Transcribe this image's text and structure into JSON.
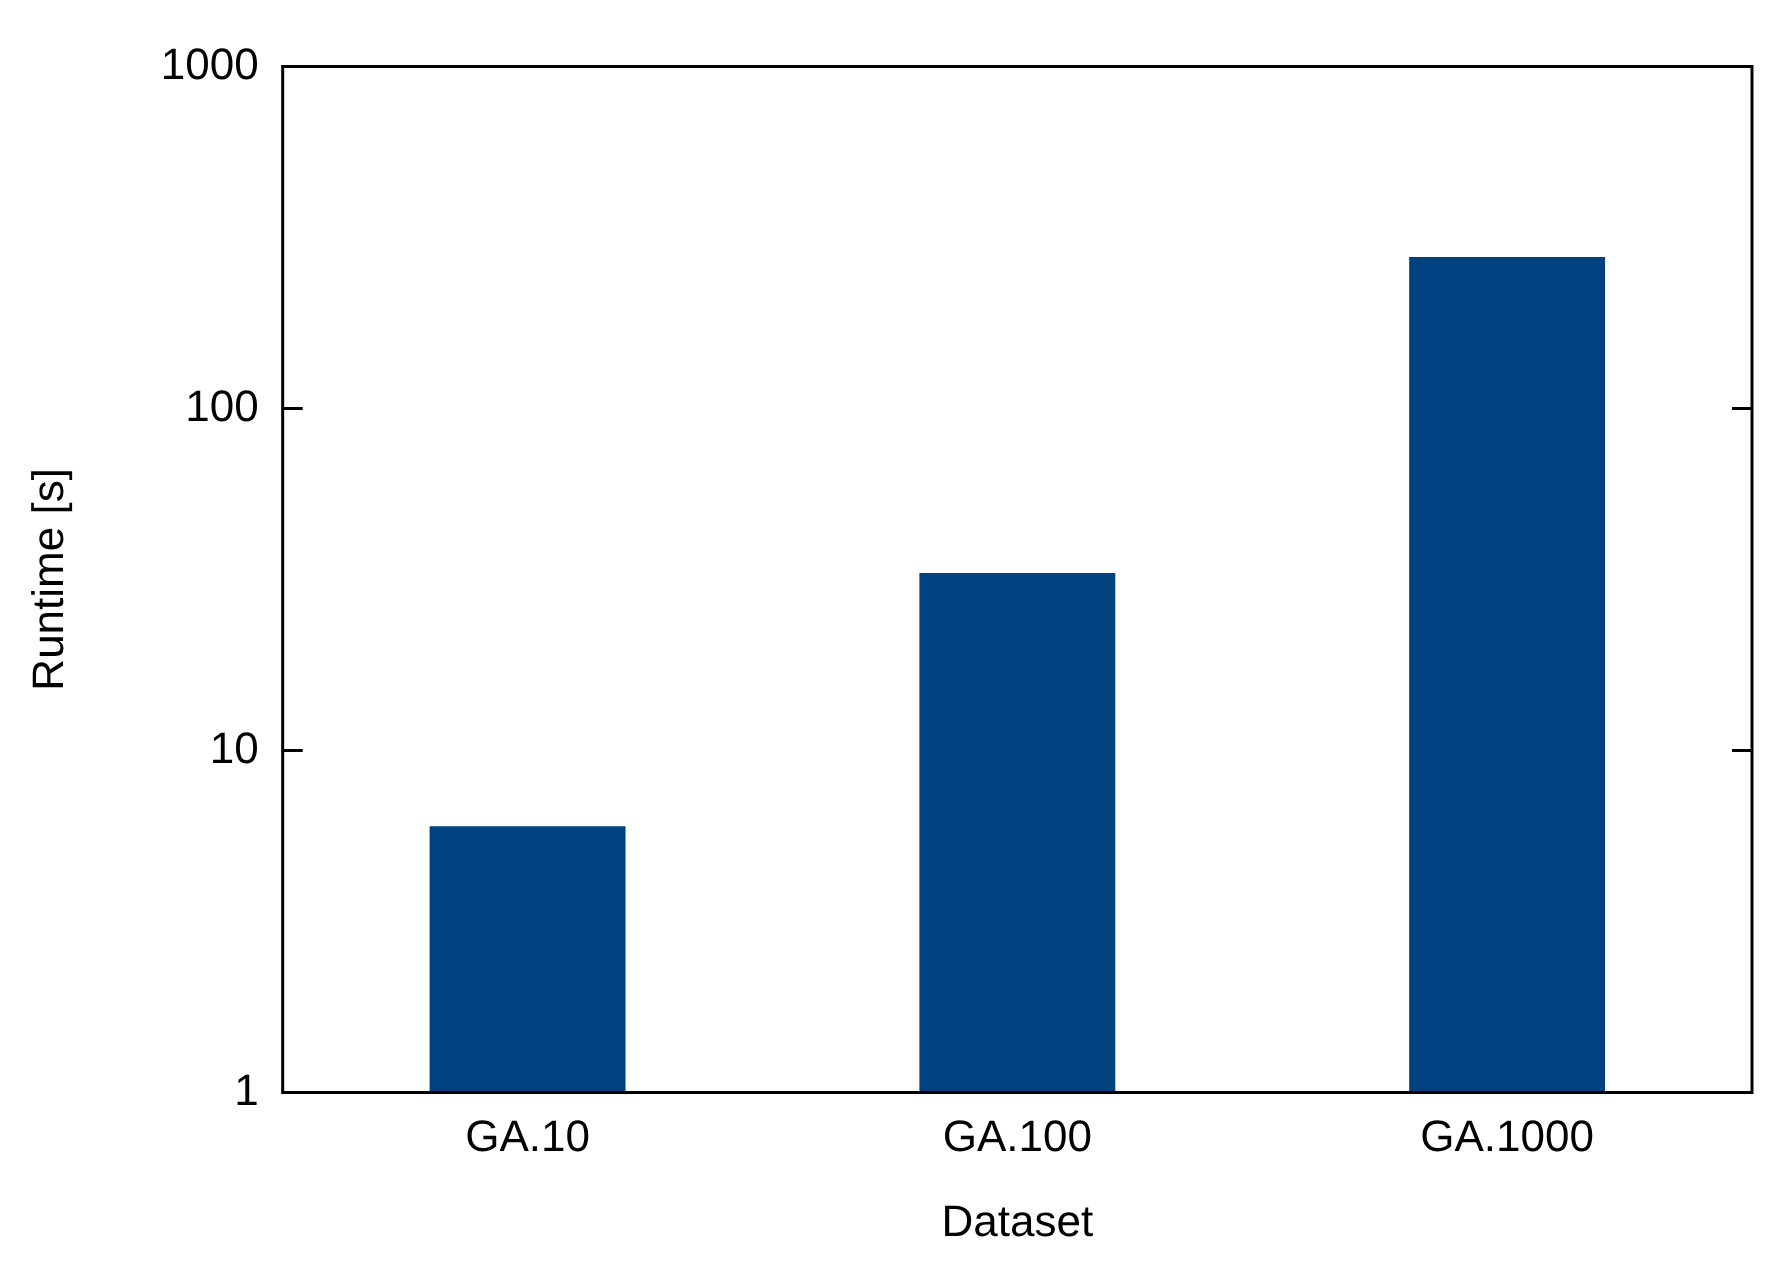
{
  "chart_data": {
    "type": "bar",
    "xlabel": "Dataset",
    "ylabel": "Runtime [s]",
    "categories": [
      "GA.10",
      "GA.100",
      "GA.1000"
    ],
    "values": [
      6.0,
      33,
      277
    ],
    "color": "#00427f",
    "log": true,
    "ylim": [
      1,
      1000
    ],
    "yticks": [
      1,
      10,
      100,
      1000
    ],
    "grid": false,
    "legend": false
  }
}
